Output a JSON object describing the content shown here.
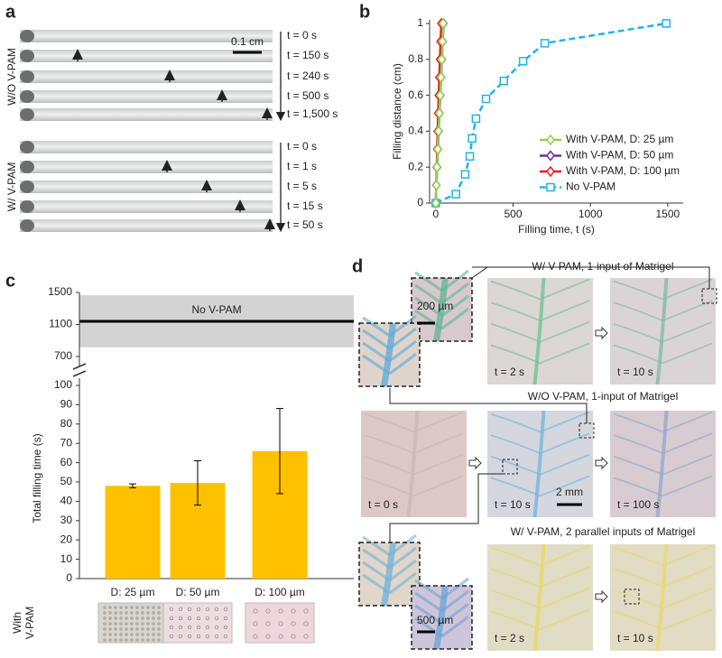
{
  "panel_a": {
    "label": "a",
    "scale_bar": "0.1 cm",
    "groups": [
      {
        "name": "W/O V-PAM",
        "times": [
          "t = 0 s",
          "t = 150 s",
          "t = 240 s",
          "t = 500 s",
          "t = 1,500 s"
        ]
      },
      {
        "name": "W/ V-PAM",
        "times": [
          "t = 0 s",
          "t = 1 s",
          "t = 5 s",
          "t = 15 s",
          "t = 50 s"
        ]
      }
    ]
  },
  "chart_data": [
    {
      "type": "line",
      "panel": "b",
      "xlabel": "Filling time, t (s)",
      "ylabel": "Filling distance (cm)",
      "xlim": [
        -40,
        1600
      ],
      "ylim": [
        0,
        1.02
      ],
      "xticks": [
        0,
        500,
        1000,
        1500
      ],
      "yticks": [
        0,
        0.2,
        0.4,
        0.6,
        0.8,
        1
      ],
      "legend": "lower right",
      "series": [
        {
          "name": "With V-PAM, D: 25 µm",
          "color": "#92d050",
          "marker": "diamond",
          "dashed": false,
          "x": [
            0,
            4,
            8,
            13,
            18,
            23,
            29,
            34,
            39,
            44,
            48
          ],
          "values": [
            0,
            0.1,
            0.2,
            0.3,
            0.4,
            0.5,
            0.6,
            0.7,
            0.8,
            0.9,
            1
          ]
        },
        {
          "name": "With V-PAM, D: 50 µm",
          "color": "#7030a0",
          "marker": "diamond",
          "dashed": false,
          "x": [
            0,
            4,
            9,
            14,
            19,
            24,
            30,
            35,
            40,
            45,
            50
          ],
          "values": [
            0,
            0.1,
            0.2,
            0.3,
            0.4,
            0.5,
            0.6,
            0.7,
            0.8,
            0.9,
            1
          ]
        },
        {
          "name": "With V-PAM, D: 100 µm",
          "color": "#e0201b",
          "marker": "diamond",
          "dashed": false,
          "x": [
            0,
            3,
            6,
            9,
            12,
            15,
            19,
            23,
            27,
            31,
            36
          ],
          "values": [
            0,
            0.1,
            0.2,
            0.3,
            0.4,
            0.5,
            0.6,
            0.7,
            0.8,
            0.9,
            1
          ]
        },
        {
          "name": "No V-PAM",
          "color": "#1fb4e6",
          "marker": "square",
          "dashed": true,
          "x": [
            0,
            130,
            190,
            220,
            235,
            260,
            325,
            440,
            565,
            705,
            1490
          ],
          "values": [
            0,
            0.05,
            0.16,
            0.26,
            0.36,
            0.47,
            0.58,
            0.68,
            0.79,
            0.89,
            1
          ]
        }
      ]
    },
    {
      "type": "bar",
      "panel": "c",
      "ylabel": "Total filling time (s)",
      "categories": [
        "D: 25 µm",
        "D: 50 µm",
        "D: 100 µm"
      ],
      "values": [
        48,
        49.5,
        66
      ],
      "errors": [
        1,
        11.5,
        22
      ],
      "color": "#ffc000",
      "ylim": [
        0,
        100
      ],
      "yticks": [
        0,
        10,
        20,
        30,
        40,
        50,
        60,
        70,
        80,
        90,
        100
      ],
      "upper_ylim": [
        700,
        1500
      ],
      "upper_yticks": [
        700,
        1100,
        1500
      ],
      "reference": {
        "label": "No V-PAM",
        "value": 1140,
        "low": 815,
        "high": 1465
      },
      "group_label": [
        "With",
        "V-PAM"
      ]
    }
  ],
  "panel_d": {
    "label": "d",
    "scale_bars": [
      "200 µm",
      "2 mm",
      "500 µm"
    ],
    "rows": [
      {
        "title": "W/ V-PAM, 1-input of Matrigel",
        "times": [
          "t = 2 s",
          "t = 10 s"
        ]
      },
      {
        "title": "W/O V-PAM, 1-input of Matrigel",
        "times": [
          "t = 0 s",
          "t = 10 s",
          "t = 100 s"
        ]
      },
      {
        "title": "W/ V-PAM, 2 parallel inputs of Matrigel",
        "times": [
          "t = 2 s",
          "t = 10 s"
        ]
      }
    ]
  }
}
